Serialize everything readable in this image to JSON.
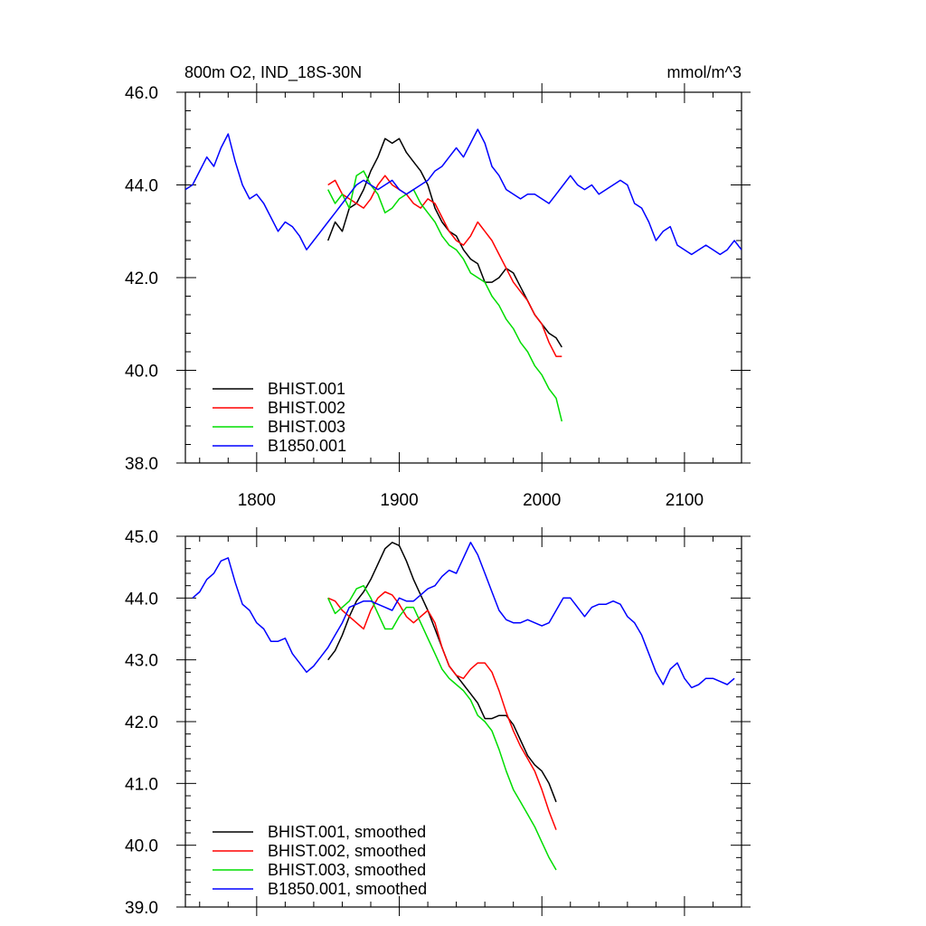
{
  "chart_data": [
    {
      "type": "line",
      "title": "800m O2, IND_18S-30N",
      "units": "mmol/m^3",
      "xlim": [
        1750,
        2140
      ],
      "ylim": [
        38.0,
        46.0
      ],
      "x_ticks": [
        1800,
        1900,
        2000,
        2100
      ],
      "y_ticks": [
        "38.0",
        "40.0",
        "42.0",
        "44.0",
        "46.0"
      ],
      "legend_position": "bottom-left",
      "series": [
        {
          "name": "BHIST.001",
          "color": "#000000",
          "x": [
            1850,
            1855,
            1860,
            1865,
            1870,
            1875,
            1880,
            1885,
            1890,
            1895,
            1900,
            1905,
            1910,
            1915,
            1920,
            1925,
            1930,
            1935,
            1940,
            1945,
            1950,
            1955,
            1960,
            1965,
            1970,
            1975,
            1980,
            1985,
            1990,
            1995,
            2000,
            2005,
            2010,
            2014
          ],
          "y": [
            42.8,
            43.2,
            43.0,
            43.5,
            43.6,
            43.9,
            44.3,
            44.6,
            45.0,
            44.9,
            45.0,
            44.7,
            44.5,
            44.3,
            44.0,
            43.5,
            43.2,
            43.0,
            42.9,
            42.6,
            42.4,
            42.3,
            41.9,
            41.9,
            42.0,
            42.2,
            42.1,
            41.8,
            41.5,
            41.2,
            41.0,
            40.8,
            40.7,
            40.5
          ]
        },
        {
          "name": "BHIST.002",
          "color": "#ff0000",
          "x": [
            1850,
            1855,
            1860,
            1865,
            1870,
            1875,
            1880,
            1885,
            1890,
            1895,
            1900,
            1905,
            1910,
            1915,
            1920,
            1925,
            1930,
            1935,
            1940,
            1945,
            1950,
            1955,
            1960,
            1965,
            1970,
            1975,
            1980,
            1985,
            1990,
            1995,
            2000,
            2005,
            2010,
            2014
          ],
          "y": [
            44.0,
            44.1,
            43.8,
            43.7,
            43.6,
            43.5,
            43.7,
            44.0,
            44.2,
            44.0,
            43.9,
            43.8,
            43.6,
            43.5,
            43.7,
            43.6,
            43.3,
            43.0,
            42.8,
            42.7,
            42.9,
            43.2,
            43.0,
            42.8,
            42.5,
            42.2,
            41.9,
            41.7,
            41.5,
            41.2,
            41.0,
            40.6,
            40.3,
            40.3
          ]
        },
        {
          "name": "BHIST.003",
          "color": "#00dd00",
          "x": [
            1850,
            1855,
            1860,
            1865,
            1870,
            1875,
            1880,
            1885,
            1890,
            1895,
            1900,
            1905,
            1910,
            1915,
            1920,
            1925,
            1930,
            1935,
            1940,
            1945,
            1950,
            1955,
            1960,
            1965,
            1970,
            1975,
            1980,
            1985,
            1990,
            1995,
            2000,
            2005,
            2010,
            2014
          ],
          "y": [
            43.9,
            43.6,
            43.8,
            43.5,
            44.2,
            44.3,
            44.0,
            43.8,
            43.4,
            43.5,
            43.7,
            43.8,
            43.9,
            43.6,
            43.4,
            43.2,
            42.9,
            42.7,
            42.6,
            42.4,
            42.1,
            42.0,
            41.9,
            41.6,
            41.4,
            41.1,
            40.9,
            40.6,
            40.4,
            40.1,
            39.9,
            39.6,
            39.4,
            38.9
          ]
        },
        {
          "name": "B1850.001",
          "color": "#0000ff",
          "x": [
            1750,
            1755,
            1760,
            1765,
            1770,
            1775,
            1780,
            1785,
            1790,
            1795,
            1800,
            1805,
            1810,
            1815,
            1820,
            1825,
            1830,
            1835,
            1840,
            1845,
            1850,
            1855,
            1860,
            1865,
            1870,
            1875,
            1880,
            1885,
            1890,
            1895,
            1900,
            1905,
            1910,
            1915,
            1920,
            1925,
            1930,
            1935,
            1940,
            1945,
            1950,
            1955,
            1960,
            1965,
            1970,
            1975,
            1980,
            1985,
            1990,
            1995,
            2000,
            2005,
            2010,
            2015,
            2020,
            2025,
            2030,
            2035,
            2040,
            2045,
            2050,
            2055,
            2060,
            2065,
            2070,
            2075,
            2080,
            2085,
            2090,
            2095,
            2100,
            2105,
            2110,
            2115,
            2120,
            2125,
            2130,
            2135,
            2140
          ],
          "y": [
            43.9,
            44.0,
            44.3,
            44.6,
            44.4,
            44.8,
            45.1,
            44.5,
            44.0,
            43.7,
            43.8,
            43.6,
            43.3,
            43.0,
            43.2,
            43.1,
            42.9,
            42.6,
            42.8,
            43.0,
            43.2,
            43.4,
            43.6,
            43.8,
            44.0,
            44.1,
            44.0,
            43.9,
            44.0,
            44.1,
            43.9,
            43.8,
            43.9,
            44.0,
            44.1,
            44.3,
            44.4,
            44.6,
            44.8,
            44.6,
            44.9,
            45.2,
            44.9,
            44.4,
            44.2,
            43.9,
            43.8,
            43.7,
            43.8,
            43.8,
            43.7,
            43.6,
            43.8,
            44.0,
            44.2,
            44.0,
            43.9,
            44.0,
            43.8,
            43.9,
            44.0,
            44.1,
            44.0,
            43.6,
            43.5,
            43.2,
            42.8,
            43.0,
            43.1,
            42.7,
            42.6,
            42.5,
            42.6,
            42.7,
            42.6,
            42.5,
            42.6,
            42.8,
            42.6
          ]
        }
      ]
    },
    {
      "type": "line",
      "xlim": [
        1750,
        2140
      ],
      "ylim": [
        39.0,
        45.0
      ],
      "x_ticks": [
        1800,
        1900,
        2000,
        2100
      ],
      "y_ticks": [
        "39.0",
        "40.0",
        "41.0",
        "42.0",
        "43.0",
        "44.0",
        "45.0"
      ],
      "legend_position": "bottom-left",
      "series": [
        {
          "name": "BHIST.001, smoothed",
          "color": "#000000",
          "x": [
            1850,
            1855,
            1860,
            1865,
            1870,
            1875,
            1880,
            1885,
            1890,
            1895,
            1900,
            1905,
            1910,
            1915,
            1920,
            1925,
            1930,
            1935,
            1940,
            1945,
            1950,
            1955,
            1960,
            1965,
            1970,
            1975,
            1980,
            1985,
            1990,
            1995,
            2000,
            2005,
            2010
          ],
          "y": [
            43.0,
            43.15,
            43.4,
            43.7,
            43.95,
            44.1,
            44.3,
            44.55,
            44.8,
            44.9,
            44.85,
            44.6,
            44.3,
            44.05,
            43.8,
            43.5,
            43.2,
            42.9,
            42.75,
            42.6,
            42.45,
            42.3,
            42.05,
            42.05,
            42.1,
            42.1,
            41.95,
            41.7,
            41.45,
            41.3,
            41.2,
            41.0,
            40.7
          ]
        },
        {
          "name": "BHIST.002, smoothed",
          "color": "#ff0000",
          "x": [
            1850,
            1855,
            1860,
            1865,
            1870,
            1875,
            1880,
            1885,
            1890,
            1895,
            1900,
            1905,
            1910,
            1915,
            1920,
            1925,
            1930,
            1935,
            1940,
            1945,
            1950,
            1955,
            1960,
            1965,
            1970,
            1975,
            1980,
            1985,
            1990,
            1995,
            2000,
            2005,
            2010
          ],
          "y": [
            44.0,
            43.95,
            43.8,
            43.7,
            43.6,
            43.5,
            43.8,
            44.0,
            44.1,
            44.05,
            43.9,
            43.7,
            43.6,
            43.7,
            43.8,
            43.6,
            43.2,
            42.9,
            42.75,
            42.7,
            42.85,
            42.95,
            42.95,
            42.8,
            42.5,
            42.15,
            41.85,
            41.6,
            41.4,
            41.2,
            40.9,
            40.55,
            40.25
          ]
        },
        {
          "name": "BHIST.003, smoothed",
          "color": "#00dd00",
          "x": [
            1850,
            1855,
            1860,
            1865,
            1870,
            1875,
            1880,
            1885,
            1890,
            1895,
            1900,
            1905,
            1910,
            1915,
            1920,
            1925,
            1930,
            1935,
            1940,
            1945,
            1950,
            1955,
            1960,
            1965,
            1970,
            1975,
            1980,
            1985,
            1990,
            1995,
            2000,
            2005,
            2010
          ],
          "y": [
            44.0,
            43.75,
            43.85,
            43.95,
            44.15,
            44.2,
            44.0,
            43.75,
            43.5,
            43.5,
            43.7,
            43.85,
            43.85,
            43.6,
            43.35,
            43.1,
            42.85,
            42.7,
            42.6,
            42.5,
            42.35,
            42.1,
            42.0,
            41.85,
            41.55,
            41.2,
            40.9,
            40.7,
            40.5,
            40.3,
            40.05,
            39.8,
            39.6
          ]
        },
        {
          "name": "B1850.001, smoothed",
          "color": "#0000ff",
          "x": [
            1755,
            1760,
            1765,
            1770,
            1775,
            1780,
            1785,
            1790,
            1795,
            1800,
            1805,
            1810,
            1815,
            1820,
            1825,
            1830,
            1835,
            1840,
            1845,
            1850,
            1855,
            1860,
            1865,
            1870,
            1875,
            1880,
            1885,
            1890,
            1895,
            1900,
            1905,
            1910,
            1915,
            1920,
            1925,
            1930,
            1935,
            1940,
            1945,
            1950,
            1955,
            1960,
            1965,
            1970,
            1975,
            1980,
            1985,
            1990,
            1995,
            2000,
            2005,
            2010,
            2015,
            2020,
            2025,
            2030,
            2035,
            2040,
            2045,
            2050,
            2055,
            2060,
            2065,
            2070,
            2075,
            2080,
            2085,
            2090,
            2095,
            2100,
            2105,
            2110,
            2115,
            2120,
            2125,
            2130,
            2135
          ],
          "y": [
            44.0,
            44.1,
            44.3,
            44.4,
            44.6,
            44.65,
            44.25,
            43.9,
            43.8,
            43.6,
            43.5,
            43.3,
            43.3,
            43.35,
            43.1,
            42.95,
            42.8,
            42.9,
            43.05,
            43.2,
            43.4,
            43.6,
            43.85,
            43.9,
            43.95,
            43.95,
            43.9,
            43.85,
            43.8,
            44.0,
            43.95,
            43.95,
            44.05,
            44.15,
            44.2,
            44.35,
            44.45,
            44.4,
            44.65,
            44.9,
            44.7,
            44.4,
            44.1,
            43.8,
            43.65,
            43.6,
            43.6,
            43.65,
            43.6,
            43.55,
            43.6,
            43.8,
            44.0,
            44.0,
            43.85,
            43.7,
            43.85,
            43.9,
            43.9,
            43.95,
            43.9,
            43.7,
            43.6,
            43.4,
            43.1,
            42.8,
            42.6,
            42.85,
            42.95,
            42.7,
            42.55,
            42.6,
            42.7,
            42.7,
            42.65,
            42.6,
            42.7
          ]
        }
      ]
    }
  ]
}
